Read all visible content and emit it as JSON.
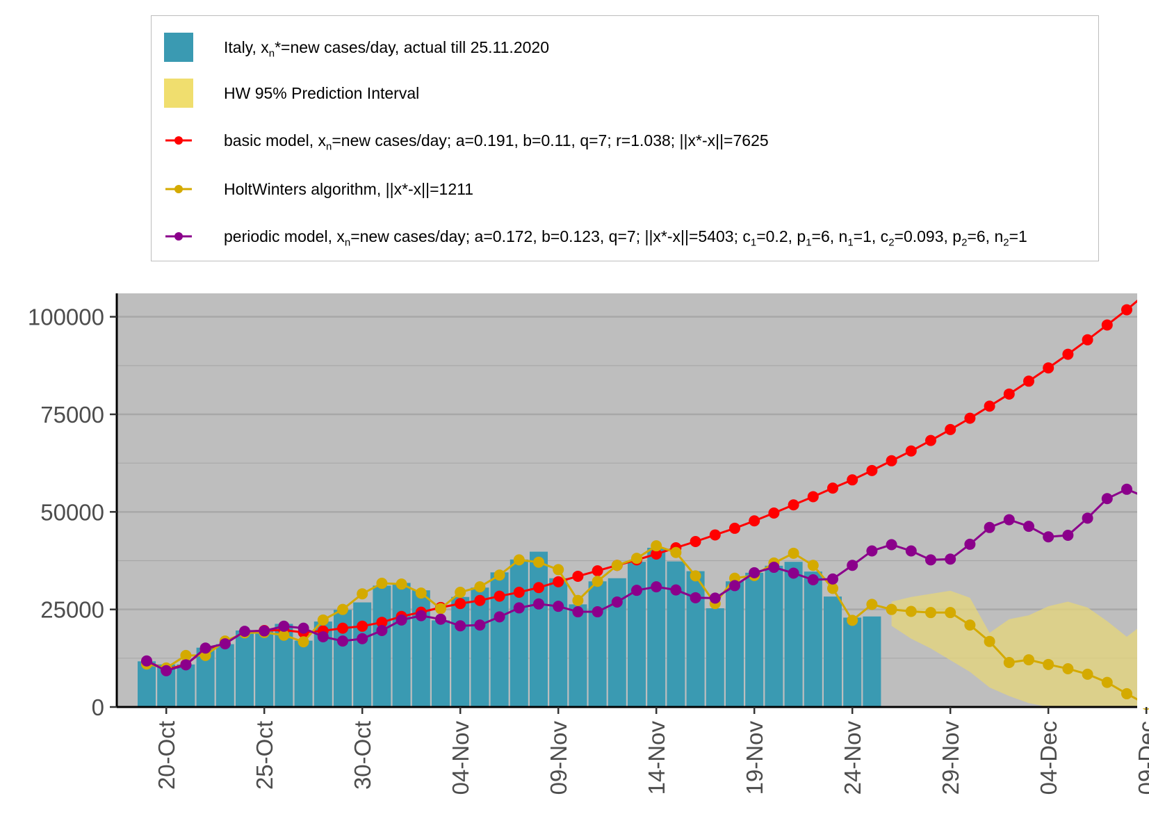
{
  "legend": {
    "items": [
      {
        "pre": "Italy, x",
        "sub": "n",
        "post": "*=new cases/day, actual till 25.11.2020",
        "kind": "box",
        "color": "#3a9ab2"
      },
      {
        "pre": "HW 95% Prediction Interval",
        "kind": "box",
        "color": "#f0de6e"
      },
      {
        "pre": "basic model,  x",
        "sub": "n",
        "post": "=new cases/day; a=0.191, b=0.11, q=7;  r=1.038; ||x*-x||=7625",
        "kind": "line",
        "color": "#ff0000"
      },
      {
        "pre": "HoltWinters algorithm,  ||x*-x||=1211",
        "kind": "line",
        "color": "#d4aa00"
      },
      {
        "pre": "periodic model, x",
        "sub": "n",
        "post": "=new cases/day; a=0.172, b=0.123, q=7; ||x*-x||=5403; c",
        "sub2": "1",
        "post2": "=0.2, p",
        "sub3": "1",
        "post3": "=6, n",
        "sub4": "1",
        "post4": "=1, c",
        "sub5": "2",
        "post5": "=0.093, p",
        "sub6": "2",
        "post6": "=6, n",
        "sub7": "2",
        "post7": "=1",
        "kind": "line",
        "color": "#8b008b"
      }
    ]
  },
  "chart_data": {
    "type": "bar",
    "x_start": "2020-10-18",
    "ylim": [
      0,
      106000
    ],
    "yticks": [
      0,
      25000,
      50000,
      75000,
      100000
    ],
    "ytick_labels": [
      "0",
      "25000",
      "50000",
      "75000",
      "100000"
    ],
    "xticks": [
      "20-Oct",
      "25-Oct",
      "30-Oct",
      "04-Nov",
      "09-Nov",
      "14-Nov",
      "19-Nov",
      "24-Nov",
      "29-Nov",
      "04-Dec",
      "09-Dec"
    ],
    "xtick_index": [
      1,
      6,
      11,
      16,
      21,
      26,
      31,
      36,
      41,
      46,
      51
    ],
    "background": "#bebebe",
    "grid": true,
    "series": [
      {
        "name": "Italy, xn*=new cases/day, actual till 25.11.2020",
        "kind": "bar",
        "color": "#3a9ab2",
        "values": [
          11700,
          10900,
          10900,
          15200,
          16100,
          19600,
          19600,
          21300,
          17000,
          21900,
          24900,
          26800,
          31100,
          31800,
          29900,
          22200,
          28200,
          30600,
          34500,
          37800,
          39800,
          33000,
          26300,
          32200,
          33000,
          37200,
          40800,
          37300,
          34800,
          25300,
          32200,
          34400,
          36200,
          37200,
          34700,
          28300,
          22900,
          23200
        ]
      },
      {
        "name": "HW 95% Prediction Interval",
        "kind": "band",
        "color": "#e6d67a",
        "start_index": 38,
        "lower": [
          20800,
          17500,
          15000,
          12000,
          9000,
          5000,
          2800,
          1000,
          0,
          0,
          0,
          0,
          0,
          0
        ],
        "upper": [
          27000,
          28200,
          29000,
          29800,
          28000,
          19000,
          22500,
          23500,
          25800,
          27000,
          25500,
          22000,
          18000,
          21800
        ]
      },
      {
        "name": "basic model",
        "kind": "line",
        "color": "#ff0000",
        "values": [
          11700,
          9600,
          10900,
          14800,
          16300,
          19300,
          19600,
          19700,
          19100,
          19500,
          20200,
          20700,
          21700,
          23200,
          24300,
          25500,
          26500,
          27300,
          28400,
          29400,
          30600,
          32100,
          33500,
          34900,
          36300,
          37700,
          39200,
          40800,
          42400,
          44100,
          45800,
          47700,
          49700,
          51800,
          53900,
          56100,
          58200,
          60600,
          63100,
          65600,
          68300,
          71100,
          74000,
          77100,
          80200,
          83500,
          86900,
          90400,
          94100,
          97900,
          101800,
          106000
        ]
      },
      {
        "name": "HoltWinters algorithm",
        "kind": "line",
        "color": "#d4aa00",
        "values": [
          11000,
          10000,
          13200,
          13200,
          16900,
          19000,
          19100,
          18400,
          16700,
          22300,
          25000,
          29000,
          31700,
          31500,
          29200,
          25200,
          29400,
          30800,
          33800,
          37700,
          37100,
          35200,
          27300,
          32200,
          36300,
          38100,
          41300,
          39600,
          33600,
          26500,
          33000,
          33700,
          36900,
          39400,
          36300,
          30400,
          22200,
          26300,
          25000,
          24500,
          24200,
          24200,
          21000,
          16800,
          11400,
          12100,
          10900,
          9800,
          8400,
          6300,
          3400,
          700
        ]
      },
      {
        "name": "periodic model",
        "kind": "line",
        "color": "#8b008b",
        "values": [
          11800,
          9300,
          10800,
          15100,
          16200,
          19400,
          19500,
          20700,
          20200,
          18000,
          16900,
          17500,
          19600,
          22300,
          23400,
          22500,
          20800,
          21000,
          23100,
          25400,
          26400,
          25800,
          24400,
          24400,
          26900,
          29900,
          30800,
          30000,
          28000,
          27900,
          31100,
          34400,
          35800,
          34300,
          32600,
          32800,
          36300,
          40000,
          41600,
          40000,
          37700,
          37900,
          41700,
          46000,
          48000,
          46300,
          43600,
          44000,
          48400,
          53400,
          55800,
          53700
        ]
      }
    ]
  }
}
